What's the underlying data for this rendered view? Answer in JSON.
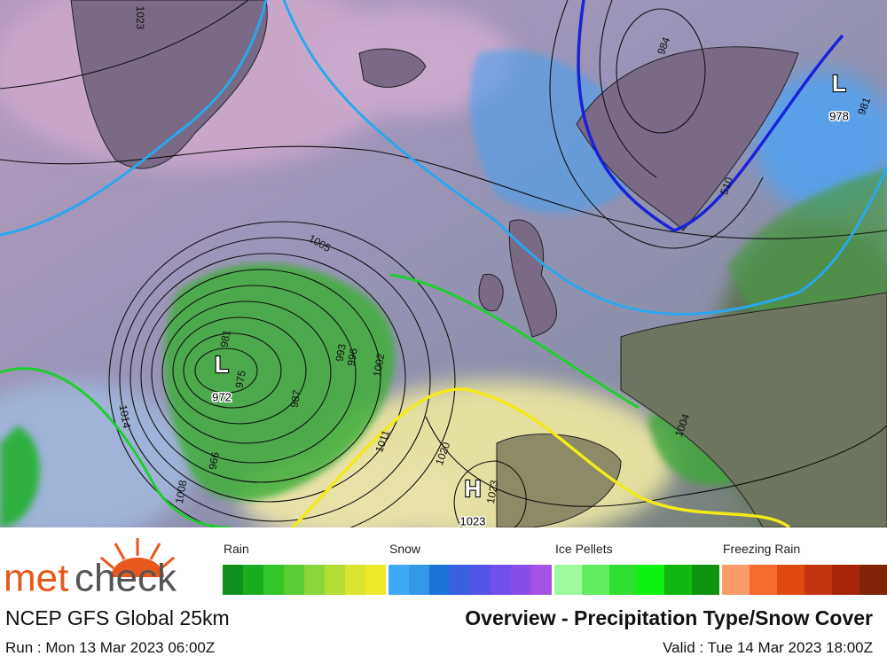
{
  "map": {
    "systems": [
      {
        "label": "L",
        "value": "972"
      },
      {
        "label": "H",
        "value": "1023"
      },
      {
        "label": "L",
        "value": "978"
      }
    ],
    "isobar_labels": [
      "1023",
      "1005",
      "984",
      "1011",
      "1020",
      "1002",
      "996",
      "993",
      "987",
      "981",
      "975",
      "966",
      "1008",
      "1014",
      "1004",
      "1023",
      "510",
      "981"
    ]
  },
  "legend": [
    {
      "name": "Rain",
      "colors": [
        "#0e8f1e",
        "#19ad1f",
        "#33c42a",
        "#5ccc33",
        "#8ad63a",
        "#b2de36",
        "#d9e331",
        "#eee92a"
      ]
    },
    {
      "name": "Snow",
      "colors": [
        "#3fa9f5",
        "#3497ea",
        "#1e73d8",
        "#3a5fe0",
        "#5554e8",
        "#7050ea",
        "#8a4de8",
        "#a552e6"
      ]
    },
    {
      "name": "Ice Pellets",
      "colors": [
        "#9dfb9d",
        "#60ee60",
        "#2fe02f",
        "#0ff20f",
        "#10b810",
        "#0e930e"
      ]
    },
    {
      "name": "Freezing Rain",
      "colors": [
        "#fb9b6a",
        "#f76b2c",
        "#e0490f",
        "#c53410",
        "#a52508",
        "#7f2406"
      ]
    }
  ],
  "footer": {
    "logo_a": "met",
    "logo_b": "check",
    "model": "NCEP GFS Global 25km",
    "title": "Overview - Precipitation Type/Snow Cover",
    "run": "Run : Mon 13 Mar 2023 06:00Z",
    "valid": "Valid : Tue 14 Mar 2023 18:00Z"
  }
}
